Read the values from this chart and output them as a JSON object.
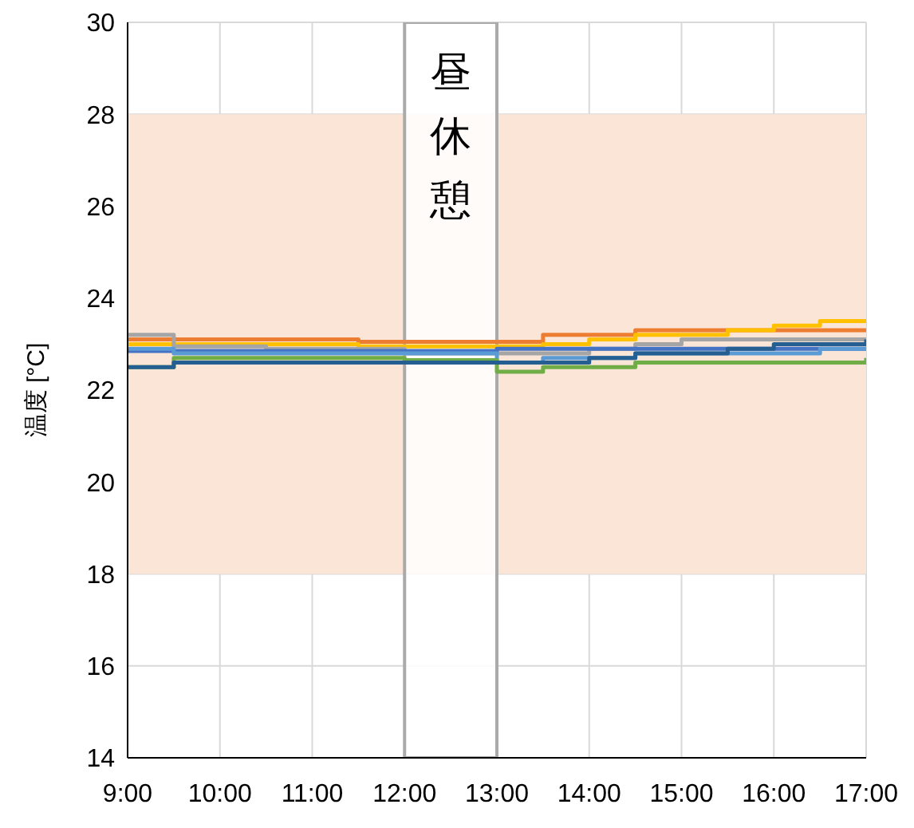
{
  "chart_data": {
    "type": "step",
    "ylabel": "温度 [°C]",
    "x": [
      9,
      9.5,
      10,
      10.5,
      11,
      11.5,
      12,
      13,
      13.5,
      14,
      14.5,
      15,
      15.5,
      16,
      16.5,
      17
    ],
    "xlim": [
      9,
      17
    ],
    "ylim": [
      14,
      30
    ],
    "xticks": [
      {
        "value": 9,
        "label": "9:00"
      },
      {
        "value": 10,
        "label": "10:00"
      },
      {
        "value": 11,
        "label": "11:00"
      },
      {
        "value": 12,
        "label": "12:00"
      },
      {
        "value": 13,
        "label": "13:00"
      },
      {
        "value": 14,
        "label": "14:00"
      },
      {
        "value": 15,
        "label": "15:00"
      },
      {
        "value": 16,
        "label": "16:00"
      },
      {
        "value": 17,
        "label": "17:00"
      }
    ],
    "yticks": [
      14,
      16,
      18,
      20,
      22,
      24,
      26,
      28,
      30
    ],
    "grid": true,
    "legend": false,
    "marker": "none",
    "line_style": "solid",
    "series": [
      {
        "color": "#ed7d31",
        "values": [
          23.1,
          23.1,
          23.1,
          23.1,
          23.1,
          23.05,
          23.05,
          23.05,
          23.2,
          23.2,
          23.3,
          23.3,
          23.3,
          23.3,
          23.3,
          23.3
        ]
      },
      {
        "color": "#ffc000",
        "values": [
          23.0,
          23.0,
          23.0,
          23.0,
          23.0,
          22.95,
          22.95,
          22.95,
          23.0,
          23.1,
          23.2,
          23.2,
          23.3,
          23.4,
          23.5,
          23.5
        ]
      },
      {
        "color": "#a5a5a5",
        "values": [
          23.2,
          22.95,
          22.95,
          22.9,
          22.9,
          22.9,
          22.8,
          22.8,
          22.8,
          22.9,
          23.0,
          23.1,
          23.1,
          23.1,
          23.1,
          23.1
        ]
      },
      {
        "color": "#4472c4",
        "values": [
          22.85,
          22.85,
          22.85,
          22.85,
          22.85,
          22.85,
          22.85,
          22.9,
          22.9,
          22.9,
          22.9,
          22.9,
          22.9,
          22.9,
          22.9,
          22.9
        ]
      },
      {
        "color": "#5b9bd5",
        "values": [
          22.9,
          22.8,
          22.8,
          22.8,
          22.8,
          22.8,
          22.8,
          22.6,
          22.7,
          22.7,
          22.8,
          22.8,
          22.8,
          22.8,
          22.9,
          22.9
        ]
      },
      {
        "color": "#70ad47",
        "values": [
          22.5,
          22.7,
          22.7,
          22.7,
          22.7,
          22.7,
          22.65,
          22.4,
          22.5,
          22.5,
          22.6,
          22.6,
          22.6,
          22.6,
          22.6,
          22.7
        ]
      },
      {
        "color": "#255e91",
        "values": [
          22.5,
          22.6,
          22.6,
          22.6,
          22.6,
          22.6,
          22.6,
          22.6,
          22.6,
          22.7,
          22.8,
          22.8,
          22.9,
          23.0,
          23.0,
          23.1
        ]
      }
    ],
    "bands": [
      {
        "axis": "y",
        "from": 18,
        "to": 28,
        "color": "#fbe5d6"
      },
      {
        "axis": "x",
        "from": 12,
        "to": 13,
        "label": "昼休憩",
        "color": "#ffffff"
      }
    ]
  }
}
